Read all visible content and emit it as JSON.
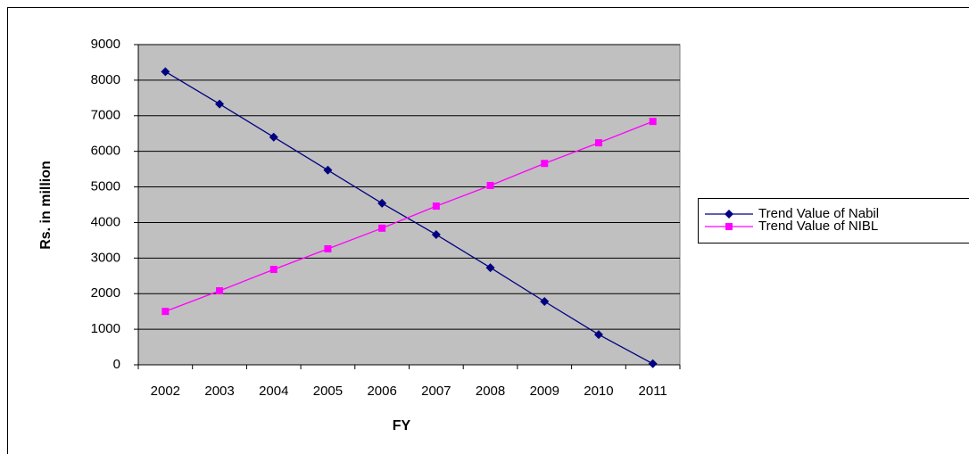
{
  "chart_data": {
    "type": "line",
    "x_label": "FY",
    "y_label": "Rs. in million",
    "categories": [
      "2002",
      "2003",
      "2004",
      "2005",
      "2006",
      "2007",
      "2008",
      "2009",
      "2010",
      "2011"
    ],
    "series": [
      {
        "name": "Trend Value of Nabil",
        "color": "#000080",
        "marker": "diamond",
        "values": [
          8240,
          7330,
          6400,
          5470,
          4540,
          3660,
          2730,
          1780,
          850,
          30
        ]
      },
      {
        "name": "Trend Value of NIBL",
        "color": "#ff00ff",
        "marker": "square",
        "values": [
          1500,
          2080,
          2680,
          3260,
          3840,
          4460,
          5040,
          5660,
          6240,
          6840
        ]
      }
    ],
    "ylim": [
      0,
      9000
    ],
    "yticks": [
      0,
      1000,
      2000,
      3000,
      4000,
      5000,
      6000,
      7000,
      8000,
      9000
    ],
    "grid": true,
    "legend": "right",
    "plot_background": "#c0c0c0"
  }
}
